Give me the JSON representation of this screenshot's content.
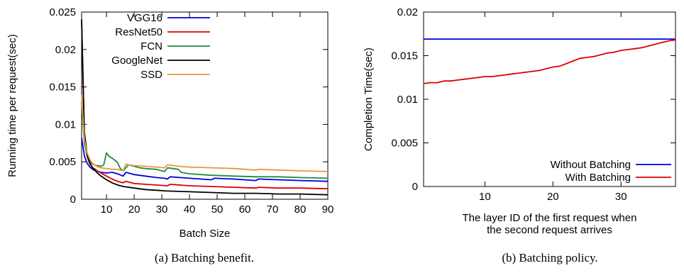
{
  "chart_data": [
    {
      "type": "line",
      "xlabel": "Batch Size",
      "ylabel": "Running time per request(sec)",
      "xlim": [
        1,
        90
      ],
      "ylim": [
        0,
        0.025
      ],
      "xticks": [
        10,
        20,
        30,
        40,
        50,
        60,
        70,
        80,
        90
      ],
      "yticks": [
        0,
        0.005,
        0.01,
        0.015,
        0.02,
        0.025
      ],
      "ytick_labels": [
        "0",
        "0.005",
        "0.01",
        "0.015",
        "0.02",
        "0.025"
      ],
      "legend_position": "top-right",
      "caption": "(a)  Batching benefit.",
      "series": [
        {
          "name": "VGG16",
          "color": "#0000dd",
          "points": [
            [
              1,
              0.0082
            ],
            [
              2,
              0.0058
            ],
            [
              3,
              0.0048
            ],
            [
              4,
              0.0043
            ],
            [
              5,
              0.004
            ],
            [
              6,
              0.0038
            ],
            [
              7,
              0.0037
            ],
            [
              8,
              0.0036
            ],
            [
              10,
              0.0035
            ],
            [
              12,
              0.0036
            ],
            [
              14,
              0.0034
            ],
            [
              16,
              0.0031
            ],
            [
              17,
              0.0036
            ],
            [
              18,
              0.0035
            ],
            [
              20,
              0.0033
            ],
            [
              24,
              0.0031
            ],
            [
              28,
              0.0029
            ],
            [
              31,
              0.0028
            ],
            [
              32,
              0.0027
            ],
            [
              33,
              0.003
            ],
            [
              40,
              0.0028
            ],
            [
              48,
              0.0026
            ],
            [
              49,
              0.0028
            ],
            [
              56,
              0.0027
            ],
            [
              64,
              0.0025
            ],
            [
              65,
              0.0027
            ],
            [
              72,
              0.0026
            ],
            [
              80,
              0.0025
            ],
            [
              90,
              0.0024
            ]
          ]
        },
        {
          "name": "ResNet50",
          "color": "#dd0000",
          "points": [
            [
              1,
              0.024
            ],
            [
              2,
              0.008
            ],
            [
              3,
              0.0057
            ],
            [
              4,
              0.0047
            ],
            [
              5,
              0.0042
            ],
            [
              6,
              0.004
            ],
            [
              7,
              0.0037
            ],
            [
              8,
              0.0035
            ],
            [
              10,
              0.0031
            ],
            [
              12,
              0.0027
            ],
            [
              14,
              0.0024
            ],
            [
              16,
              0.0022
            ],
            [
              17,
              0.0024
            ],
            [
              18,
              0.0023
            ],
            [
              20,
              0.0021
            ],
            [
              24,
              0.002
            ],
            [
              28,
              0.0019
            ],
            [
              32,
              0.0018
            ],
            [
              33,
              0.002
            ],
            [
              40,
              0.0018
            ],
            [
              48,
              0.0017
            ],
            [
              56,
              0.0016
            ],
            [
              64,
              0.0015
            ],
            [
              65,
              0.0016
            ],
            [
              72,
              0.0015
            ],
            [
              80,
              0.0015
            ],
            [
              90,
              0.0014
            ]
          ]
        },
        {
          "name": "FCN",
          "color": "#1e8c3e",
          "points": [
            [
              1,
              0.013
            ],
            [
              2,
              0.0075
            ],
            [
              3,
              0.0058
            ],
            [
              4,
              0.005
            ],
            [
              5,
              0.0047
            ],
            [
              6,
              0.0045
            ],
            [
              7,
              0.0045
            ],
            [
              8,
              0.0044
            ],
            [
              9,
              0.0046
            ],
            [
              10,
              0.0062
            ],
            [
              11,
              0.0057
            ],
            [
              12,
              0.0055
            ],
            [
              13,
              0.0052
            ],
            [
              14,
              0.0049
            ],
            [
              15,
              0.0041
            ],
            [
              16,
              0.0038
            ],
            [
              17,
              0.0042
            ],
            [
              18,
              0.0046
            ],
            [
              20,
              0.0044
            ],
            [
              22,
              0.0042
            ],
            [
              24,
              0.0041
            ],
            [
              28,
              0.004
            ],
            [
              30,
              0.0038
            ],
            [
              31,
              0.0037
            ],
            [
              32,
              0.0042
            ],
            [
              34,
              0.0041
            ],
            [
              36,
              0.004
            ],
            [
              37,
              0.0036
            ],
            [
              40,
              0.0034
            ],
            [
              48,
              0.0032
            ],
            [
              56,
              0.0031
            ],
            [
              64,
              0.003
            ],
            [
              72,
              0.003
            ],
            [
              80,
              0.0029
            ],
            [
              90,
              0.0028
            ]
          ]
        },
        {
          "name": "GoogleNet",
          "color": "#000000",
          "points": [
            [
              1,
              0.024
            ],
            [
              2,
              0.009
            ],
            [
              3,
              0.006
            ],
            [
              4,
              0.0048
            ],
            [
              5,
              0.0042
            ],
            [
              6,
              0.0038
            ],
            [
              7,
              0.0034
            ],
            [
              8,
              0.0031
            ],
            [
              10,
              0.0026
            ],
            [
              12,
              0.0022
            ],
            [
              14,
              0.0019
            ],
            [
              16,
              0.0017
            ],
            [
              20,
              0.0015
            ],
            [
              24,
              0.0013
            ],
            [
              28,
              0.0012
            ],
            [
              32,
              0.0011
            ],
            [
              40,
              0.001
            ],
            [
              48,
              0.0009
            ],
            [
              56,
              0.0008
            ],
            [
              64,
              0.0008
            ],
            [
              72,
              0.0007
            ],
            [
              80,
              0.0007
            ],
            [
              90,
              0.0006
            ]
          ]
        },
        {
          "name": "SSD",
          "color": "#e59a3b",
          "points": [
            [
              1,
              0.014
            ],
            [
              2,
              0.008
            ],
            [
              3,
              0.0062
            ],
            [
              4,
              0.0053
            ],
            [
              5,
              0.0048
            ],
            [
              6,
              0.0045
            ],
            [
              7,
              0.0043
            ],
            [
              8,
              0.0042
            ],
            [
              10,
              0.0041
            ],
            [
              12,
              0.004
            ],
            [
              14,
              0.004
            ],
            [
              15,
              0.0039
            ],
            [
              16,
              0.0038
            ],
            [
              17,
              0.0047
            ],
            [
              18,
              0.0046
            ],
            [
              20,
              0.0045
            ],
            [
              24,
              0.0044
            ],
            [
              28,
              0.0043
            ],
            [
              31,
              0.0042
            ],
            [
              32,
              0.0046
            ],
            [
              36,
              0.0044
            ],
            [
              40,
              0.0043
            ],
            [
              48,
              0.0042
            ],
            [
              56,
              0.0041
            ],
            [
              64,
              0.0039
            ],
            [
              65,
              0.004
            ],
            [
              72,
              0.0039
            ],
            [
              80,
              0.0038
            ],
            [
              90,
              0.0037
            ]
          ]
        }
      ]
    },
    {
      "type": "line",
      "xlabel": "The layer ID of the first request when\nthe second request arrives",
      "ylabel": "Completion Time(sec)",
      "xlim": [
        1,
        38
      ],
      "ylim": [
        0,
        0.02
      ],
      "xticks": [
        10,
        20,
        30
      ],
      "yticks": [
        0,
        0.005,
        0.01,
        0.015,
        0.02
      ],
      "ytick_labels": [
        "0",
        "0.005",
        "0.01",
        "0.015",
        "0.02"
      ],
      "legend_position": "bottom-right",
      "caption": "(b)  Batching policy.",
      "series": [
        {
          "name": "Without Batching",
          "color": "#0000dd",
          "points": [
            [
              1,
              0.0169
            ],
            [
              38,
              0.0169
            ]
          ]
        },
        {
          "name": "With Batching",
          "color": "#dd0000",
          "points": [
            [
              1,
              0.0118
            ],
            [
              2,
              0.0119
            ],
            [
              3,
              0.0119
            ],
            [
              4,
              0.0121
            ],
            [
              5,
              0.0121
            ],
            [
              6,
              0.0122
            ],
            [
              7,
              0.0123
            ],
            [
              8,
              0.0124
            ],
            [
              9,
              0.0125
            ],
            [
              10,
              0.0126
            ],
            [
              11,
              0.0126
            ],
            [
              12,
              0.0127
            ],
            [
              13,
              0.0128
            ],
            [
              14,
              0.0129
            ],
            [
              15,
              0.013
            ],
            [
              16,
              0.0131
            ],
            [
              17,
              0.0132
            ],
            [
              18,
              0.0133
            ],
            [
              19,
              0.0135
            ],
            [
              20,
              0.0137
            ],
            [
              21,
              0.0138
            ],
            [
              22,
              0.0141
            ],
            [
              23,
              0.0144
            ],
            [
              24,
              0.0147
            ],
            [
              25,
              0.0148
            ],
            [
              26,
              0.0149
            ],
            [
              27,
              0.0151
            ],
            [
              28,
              0.0153
            ],
            [
              29,
              0.0154
            ],
            [
              30,
              0.0156
            ],
            [
              31,
              0.0157
            ],
            [
              32,
              0.0158
            ],
            [
              33,
              0.0159
            ],
            [
              34,
              0.0161
            ],
            [
              35,
              0.0163
            ],
            [
              36,
              0.0165
            ],
            [
              37,
              0.0167
            ],
            [
              38,
              0.0168
            ]
          ]
        }
      ]
    }
  ]
}
